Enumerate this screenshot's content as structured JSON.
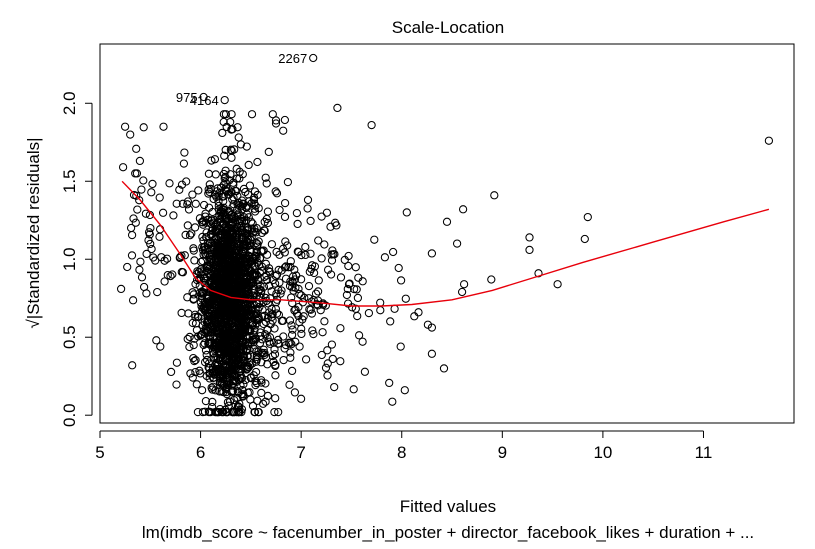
{
  "chart_data": {
    "type": "scatter",
    "title": "Scale-Location",
    "xlabel": "Fitted values",
    "ylabel": "√|Standardized residuals|",
    "sublabel": "lm(imdb_score ~ facenumber_in_poster + director_facebook_likes + duration + ...",
    "xlim": [
      5.0,
      11.9
    ],
    "ylim": [
      -0.05,
      2.38
    ],
    "x_ticks": [
      5,
      6,
      7,
      8,
      9,
      10,
      11
    ],
    "y_ticks": [
      0.0,
      0.5,
      1.0,
      1.5,
      2.0
    ],
    "y_tick_labels": [
      "0.0",
      "0.5",
      "1.0",
      "1.5",
      "2.0"
    ],
    "grid": false,
    "point_color": "#000000",
    "smooth_color": "#e8000b",
    "labeled_points": [
      {
        "label": "2267",
        "x": 7.12,
        "y": 2.29
      },
      {
        "label": "975",
        "x": 6.03,
        "y": 2.04
      },
      {
        "label": "4164",
        "x": 6.24,
        "y": 2.02
      }
    ],
    "outlying_points": [
      {
        "x": 11.65,
        "y": 1.76
      },
      {
        "x": 9.85,
        "y": 1.27
      },
      {
        "x": 9.82,
        "y": 1.13
      },
      {
        "x": 9.55,
        "y": 0.84
      },
      {
        "x": 9.36,
        "y": 0.91
      },
      {
        "x": 9.27,
        "y": 1.14
      },
      {
        "x": 9.27,
        "y": 1.06
      },
      {
        "x": 8.92,
        "y": 1.41
      },
      {
        "x": 8.89,
        "y": 0.87
      },
      {
        "x": 8.61,
        "y": 1.32
      },
      {
        "x": 8.62,
        "y": 0.84
      },
      {
        "x": 8.6,
        "y": 0.79
      },
      {
        "x": 8.55,
        "y": 1.1
      },
      {
        "x": 8.45,
        "y": 1.24
      },
      {
        "x": 8.42,
        "y": 0.3
      },
      {
        "x": 8.26,
        "y": 0.58
      },
      {
        "x": 8.05,
        "y": 1.3
      },
      {
        "x": 7.36,
        "y": 1.97
      },
      {
        "x": 7.7,
        "y": 1.86
      },
      {
        "x": 6.75,
        "y": 1.89
      },
      {
        "x": 6.75,
        "y": 1.87
      },
      {
        "x": 5.25,
        "y": 1.85
      },
      {
        "x": 5.23,
        "y": 1.59
      },
      {
        "x": 5.21,
        "y": 0.81
      },
      {
        "x": 5.27,
        "y": 0.95
      },
      {
        "x": 5.32,
        "y": 0.32
      },
      {
        "x": 5.56,
        "y": 0.48
      },
      {
        "x": 5.6,
        "y": 0.44
      },
      {
        "x": 8.03,
        "y": 0.16
      },
      {
        "x": 7.99,
        "y": 0.44
      }
    ],
    "cloud": {
      "n": 2100,
      "x_center": 6.28,
      "y_center": 0.74
    },
    "smooth_line": [
      {
        "x": 5.22,
        "y": 1.5
      },
      {
        "x": 5.4,
        "y": 1.38
      },
      {
        "x": 5.6,
        "y": 1.22
      },
      {
        "x": 5.8,
        "y": 1.03
      },
      {
        "x": 5.95,
        "y": 0.88
      },
      {
        "x": 6.1,
        "y": 0.8
      },
      {
        "x": 6.3,
        "y": 0.755
      },
      {
        "x": 6.5,
        "y": 0.74
      },
      {
        "x": 6.8,
        "y": 0.74
      },
      {
        "x": 7.2,
        "y": 0.72
      },
      {
        "x": 7.5,
        "y": 0.7
      },
      {
        "x": 7.8,
        "y": 0.7
      },
      {
        "x": 8.1,
        "y": 0.71
      },
      {
        "x": 8.5,
        "y": 0.74
      },
      {
        "x": 8.9,
        "y": 0.8
      },
      {
        "x": 9.3,
        "y": 0.88
      },
      {
        "x": 9.8,
        "y": 0.98
      },
      {
        "x": 10.5,
        "y": 1.11
      },
      {
        "x": 11.2,
        "y": 1.24
      },
      {
        "x": 11.65,
        "y": 1.32
      }
    ]
  }
}
